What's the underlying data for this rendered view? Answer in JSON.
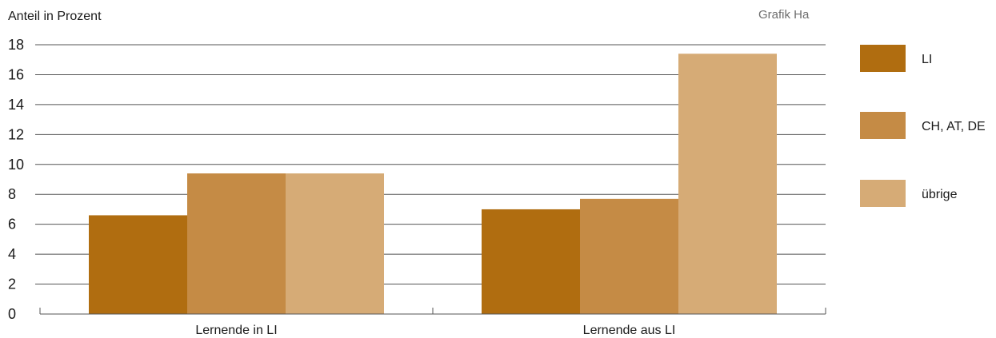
{
  "header": {
    "ylabel": "Anteil in Prozent",
    "grafik": "Grafik Ha"
  },
  "chart_data": {
    "type": "bar",
    "title": "",
    "xlabel": "",
    "ylabel": "Anteil in Prozent",
    "categories": [
      "Lernende in LI",
      "Lernende aus LI"
    ],
    "series": [
      {
        "name": "LI",
        "values": [
          6.6,
          7.0
        ],
        "color": "#b06d10"
      },
      {
        "name": "CH, AT, DE",
        "values": [
          9.4,
          7.7
        ],
        "color": "#c58b45"
      },
      {
        "name": "übrige",
        "values": [
          9.4,
          17.4
        ],
        "color": "#d6ab76"
      }
    ],
    "ylim": [
      0,
      18
    ],
    "yticks": [
      0,
      2,
      4,
      6,
      8,
      10,
      12,
      14,
      16,
      18
    ],
    "grid": true,
    "legend_position": "right"
  }
}
